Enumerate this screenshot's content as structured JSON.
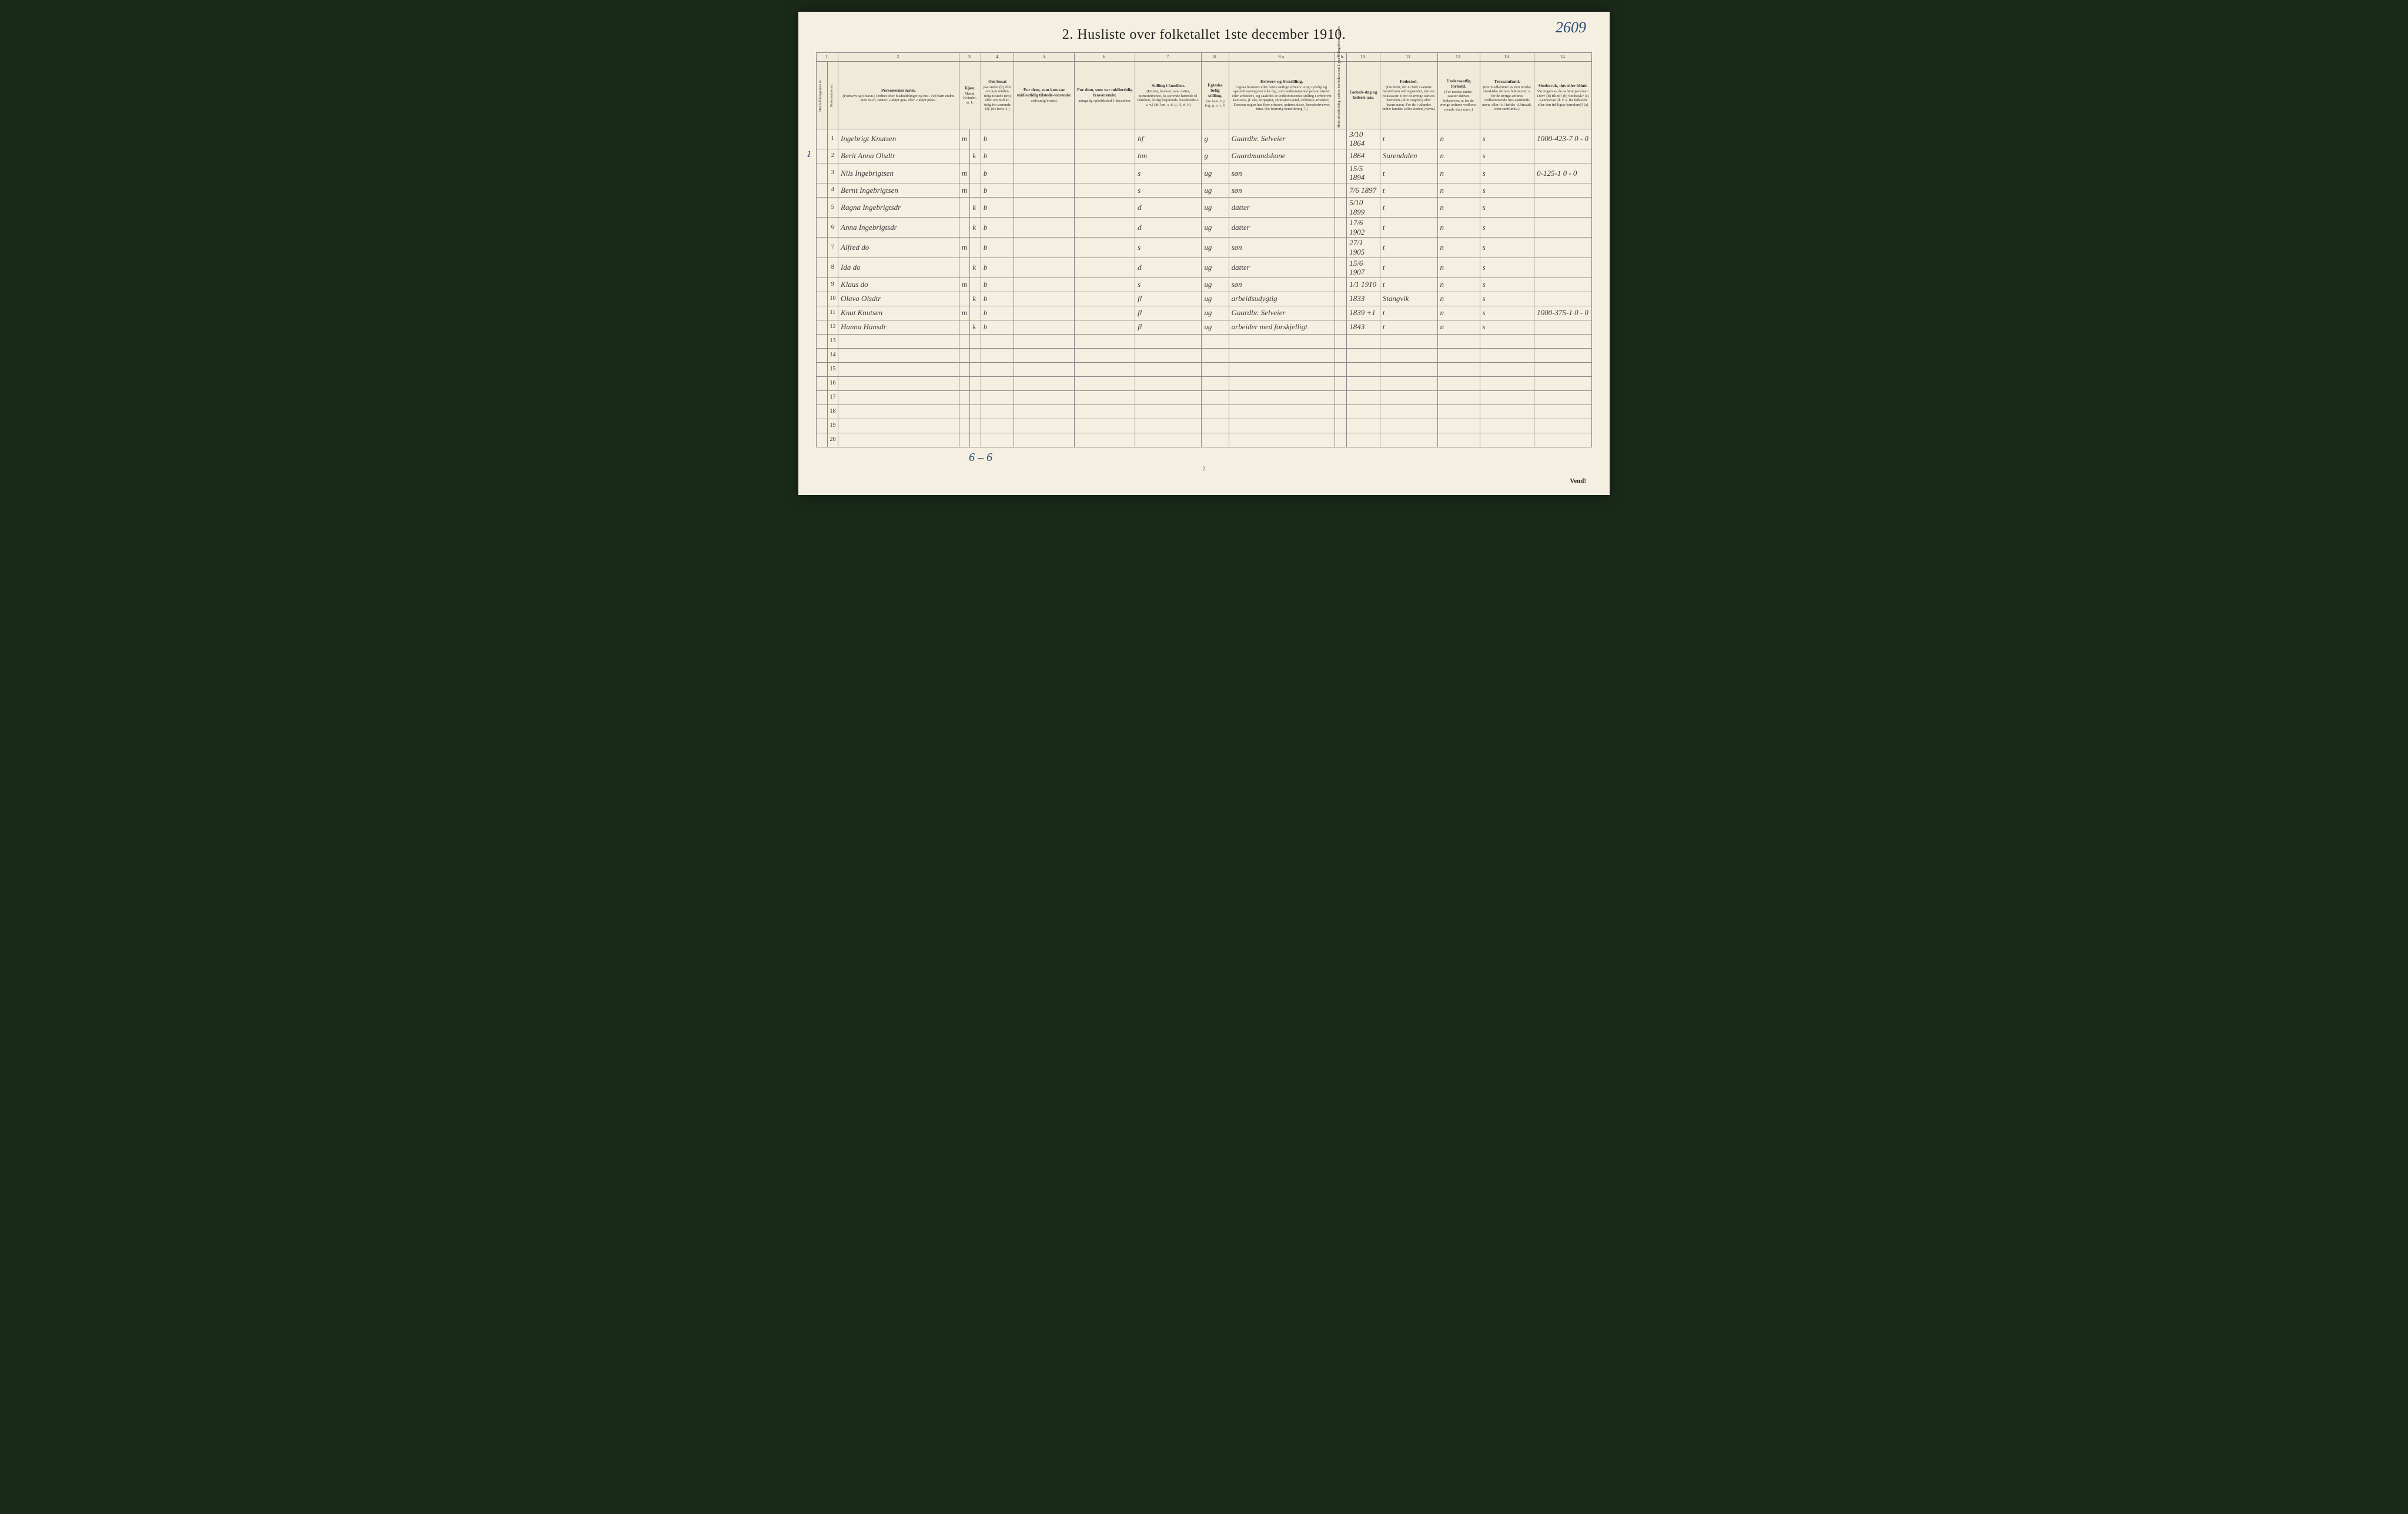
{
  "page_number_handwritten": "2609",
  "title": "2. Husliste over folketallet 1ste december 1910.",
  "left_margin_mark": "1",
  "column_numbers": [
    "1.",
    "",
    "2.",
    "3.",
    "4.",
    "5.",
    "6.",
    "7.",
    "8.",
    "9 a.",
    "9 b.",
    "10.",
    "11.",
    "12.",
    "13.",
    "14."
  ],
  "headers": {
    "c1": {
      "vert1": "Husholdningernes nr.",
      "vert2": "Personernes nr."
    },
    "c2": {
      "label": "Personernes navn.",
      "sub": "(Fornavn og tilnavn.)\nOrdnet efter husholdninger og hus.\nVed barn endnu uten navn, sættes: «udøpt gut» eller «udøpt pike»."
    },
    "c3": {
      "label": "Kjøn.",
      "sub": "Mænd.  Kvinder.",
      "sub2": "m.   k."
    },
    "c4": {
      "label": "Om bosat",
      "sub": "paa stedet (b) eller om kun midler-tidig tilstede (mt) eller om midler-tidig fra-værende (f). (Se bem. 4.)"
    },
    "c5": {
      "label": "For dem, som kun var midlertidig tilstede-værende:",
      "sub": "sedvanlig bosted."
    },
    "c6": {
      "label": "For dem, som var midlertidig fraværende:",
      "sub": "antagelig opholdssted 1 december."
    },
    "c7": {
      "label": "Stilling i familien.",
      "sub": "(Husfar, husmor, søn, datter, tjenestetyende, lo-sjerende hørende til familien, enslig losjerende, besøkende o. s. v.)\n(hf, hm, s, d, tj, fl, el, b)"
    },
    "c8": {
      "label": "Egteska belig stilling.",
      "sub": "(Se bem. 6.)\n(ug, g, e, s, f)"
    },
    "c9a": {
      "label": "Erhverv og livsstilling.",
      "sub": "Ogsaa husmors eller barns særlige erhverv.\nAngi tydelig og specielt næringsvei eller fag, som vedkommende person utøver eller arbeider i, og saaledes at vedkommendes stilling i erhvervet kan sees, (f. eks. forpagter, skomakersvend, cellulose-arbeider). Dersom nogen har flere erhverv, anføres disse, hovederhvervet først.\n(Se forøvrig bemerkning 7.)"
    },
    "c9b": {
      "vert": "Hvis arbeidsledig, sættes her bokstaven l.\npaa tellingstidens sættes"
    },
    "c10": {
      "label": "Fødsels-dag og fødsels-aar."
    },
    "c11": {
      "label": "Fødested.",
      "sub": "(For dem, der er født i samme herred som tællingsstedet, skrives bokstaven: t; for de øvrige skrives herredets (eller sognets) eller byens navn. For de i utlandet fødte: landets (eller stedets) navn.)"
    },
    "c12": {
      "label": "Undersaatlig forhold.",
      "sub": "(For norske under-saatter skrives bokstaven: n; for de øvrige anføres vedkom-mende stats navn.)"
    },
    "c13": {
      "label": "Trossamfund.",
      "sub": "(For medlemmer av den norske statskirke skrives bokstaven: s; for de øvrige anføres vedkommende tros-samfunds navn, eller i til-fælde: «Uttraadt, intet samfund».)"
    },
    "c14": {
      "label": "Sindssvak, døv eller blind.",
      "sub": "Var nogen av de anførte personer:\nDøv?      (d)\nBlind?    (b)\nSindssyk? (s)\nAandssvak (d. v. s. fra fødselen eller den tid-ligste barndom)? (a)"
    }
  },
  "rows": [
    {
      "hh": "",
      "pn": "1",
      "name": "Ingebrigt Knutsen",
      "sex": "m",
      "bosat": "b",
      "c5": "",
      "c6": "",
      "stilling": "hf",
      "egte": "g",
      "erhverv": "Gaardbr. Selveier",
      "c9b": "",
      "dob": "3/10 1864",
      "fodested": "t",
      "unders": "n",
      "tros": "s",
      "c14": "",
      "note": "1000-423-7\n0 - 0"
    },
    {
      "hh": "",
      "pn": "2",
      "name": "Berit Anna Olsdtr",
      "sex": "k",
      "bosat": "b",
      "c5": "",
      "c6": "",
      "stilling": "hm",
      "egte": "g",
      "erhverv": "Gaardmandskone",
      "c9b": "",
      "dob": "1864",
      "fodested": "Surendalen",
      "unders": "n",
      "tros": "s",
      "c14": "",
      "note": ""
    },
    {
      "hh": "",
      "pn": "3",
      "name": "Nils Ingebrigtsen",
      "sex": "m",
      "bosat": "b",
      "c5": "",
      "c6": "",
      "stilling": "s",
      "egte": "ug",
      "erhverv": "søn",
      "c9b": "",
      "dob": "15/5 1894",
      "fodested": "t",
      "unders": "n",
      "tros": "s",
      "c14": "",
      "note": "0-125-1\n0 - 0"
    },
    {
      "hh": "",
      "pn": "4",
      "name": "Bernt Ingebrigtsen",
      "sex": "m",
      "bosat": "b",
      "c5": "",
      "c6": "",
      "stilling": "s",
      "egte": "ug",
      "erhverv": "søn",
      "c9b": "",
      "dob": "7/6 1897",
      "fodested": "t",
      "unders": "n",
      "tros": "s",
      "c14": "",
      "note": ""
    },
    {
      "hh": "",
      "pn": "5",
      "name": "Ragna Ingebrigtsdr",
      "sex": "k",
      "bosat": "b",
      "c5": "",
      "c6": "",
      "stilling": "d",
      "egte": "ug",
      "erhverv": "datter",
      "c9b": "",
      "dob": "5/10 1899",
      "fodested": "t",
      "unders": "n",
      "tros": "s",
      "c14": "",
      "note": ""
    },
    {
      "hh": "",
      "pn": "6",
      "name": "Anna Ingebrigtsdr",
      "sex": "k",
      "bosat": "b",
      "c5": "",
      "c6": "",
      "stilling": "d",
      "egte": "ug",
      "erhverv": "datter",
      "c9b": "",
      "dob": "17/6 1902",
      "fodested": "t",
      "unders": "n",
      "tros": "s",
      "c14": "",
      "note": ""
    },
    {
      "hh": "",
      "pn": "7",
      "name": "Alfred do",
      "sex": "m",
      "bosat": "b",
      "c5": "",
      "c6": "",
      "stilling": "s",
      "egte": "ug",
      "erhverv": "søn",
      "c9b": "",
      "dob": "27/1 1905",
      "fodested": "t",
      "unders": "n",
      "tros": "s",
      "c14": "",
      "note": ""
    },
    {
      "hh": "",
      "pn": "8",
      "name": "Ida do",
      "sex": "k",
      "bosat": "b",
      "c5": "",
      "c6": "",
      "stilling": "d",
      "egte": "ug",
      "erhverv": "datter",
      "c9b": "",
      "dob": "15/6 1907",
      "fodested": "t",
      "unders": "n",
      "tros": "s",
      "c14": "",
      "note": ""
    },
    {
      "hh": "",
      "pn": "9",
      "name": "Klaus do",
      "sex": "m",
      "bosat": "b",
      "c5": "",
      "c6": "",
      "stilling": "s",
      "egte": "ug",
      "erhverv": "søn",
      "c9b": "",
      "dob": "1/1 1910",
      "fodested": "t",
      "unders": "n",
      "tros": "s",
      "c14": "",
      "note": ""
    },
    {
      "hh": "",
      "pn": "10",
      "name": "Olava Olsdtr",
      "sex": "k",
      "bosat": "b",
      "c5": "",
      "c6": "",
      "stilling": "fl",
      "egte": "ug",
      "erhverv": "arbeidsudygtig",
      "c9b": "",
      "dob": "1833",
      "fodested": "Stangvik",
      "unders": "n",
      "tros": "s",
      "c14": "",
      "note": ""
    },
    {
      "hh": "",
      "pn": "11",
      "name": "Knut Knutsen",
      "sex": "m",
      "bosat": "b",
      "c5": "",
      "c6": "",
      "stilling": "fl",
      "egte": "ug",
      "erhverv": "Gaardbr. Selveier",
      "c9b": "",
      "dob": "1839 +1",
      "fodested": "t",
      "unders": "n",
      "tros": "s",
      "c14": "",
      "note": "1000-375-1\n0 - 0"
    },
    {
      "hh": "",
      "pn": "12",
      "name": "Hanna Hansdr",
      "sex": "k",
      "bosat": "b",
      "c5": "",
      "c6": "",
      "stilling": "fl",
      "egte": "ug",
      "erhverv": "arbeider med forskjelligt",
      "c9b": "",
      "dob": "1843",
      "fodested": "t",
      "unders": "n",
      "tros": "s",
      "c14": "",
      "note": ""
    }
  ],
  "empty_rows": [
    "13",
    "14",
    "15",
    "16",
    "17",
    "18",
    "19",
    "20"
  ],
  "bottom_tally": "6 – 6",
  "page_num_bottom": "2",
  "vend": "Vend!",
  "col_widths": {
    "hh": 18,
    "pn": 18,
    "name": 200,
    "sex_m": 18,
    "sex_k": 18,
    "bosat": 55,
    "c5": 100,
    "c6": 100,
    "stilling": 110,
    "egte": 45,
    "erhverv": 175,
    "c9b": 20,
    "dob": 55,
    "fodested": 95,
    "unders": 70,
    "tros": 90,
    "c14": 95
  },
  "colors": {
    "paper": "#f4efe0",
    "border": "#888",
    "ink": "#333",
    "handwriting": "#3a3a3a",
    "blue_pencil": "#2a4a7a",
    "background": "#1a2a1a"
  }
}
